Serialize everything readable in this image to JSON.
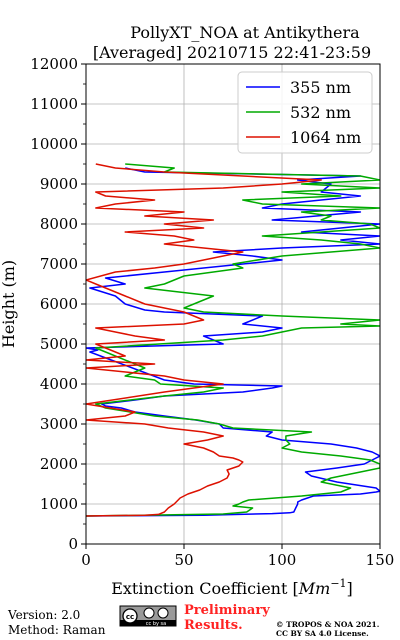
{
  "chart_data": {
    "type": "line",
    "title": "PollyXT_NOA at Antikythera",
    "subtitle": "[Averaged] 20210715 22:41-23:59",
    "xlabel": "Extinction Coefficient [Mm^-1]",
    "xlabel_text": "Extinction Coefficient [",
    "xlabel_unit": "Mm",
    "xlabel_exp": "−1",
    "xlabel_close": "]",
    "ylabel": "Height (m)",
    "xlim": [
      0,
      150
    ],
    "ylim": [
      0,
      12000
    ],
    "xticks": [
      "0",
      "50",
      "100",
      "150"
    ],
    "yticks": [
      "0",
      "1000",
      "2000",
      "3000",
      "4000",
      "5000",
      "6000",
      "7000",
      "8000",
      "9000",
      "10000",
      "11000",
      "12000"
    ],
    "grid": true,
    "legend_position": "top-right",
    "series": [
      {
        "name": "355 nm",
        "color": "#0000ff",
        "points": [
          [
            0,
            700
          ],
          [
            60,
            720
          ],
          [
            95,
            760
          ],
          [
            104,
            780
          ],
          [
            106,
            800
          ],
          [
            107,
            900
          ],
          [
            108,
            1000
          ],
          [
            108,
            1050
          ],
          [
            110,
            1100
          ],
          [
            116,
            1200
          ],
          [
            140,
            1250
          ],
          [
            148,
            1300
          ],
          [
            150,
            1320
          ],
          [
            148,
            1400
          ],
          [
            128,
            1550
          ],
          [
            115,
            1700
          ],
          [
            112,
            1800
          ],
          [
            128,
            1900
          ],
          [
            142,
            2000
          ],
          [
            146,
            2100
          ],
          [
            150,
            2200
          ],
          [
            146,
            2300
          ],
          [
            138,
            2400
          ],
          [
            125,
            2500
          ],
          [
            100,
            2600
          ],
          [
            92,
            2700
          ],
          [
            95,
            2800
          ],
          [
            70,
            2900
          ],
          [
            68,
            3000
          ],
          [
            56,
            3100
          ],
          [
            40,
            3200
          ],
          [
            25,
            3300
          ],
          [
            18,
            3400
          ],
          [
            10,
            3450
          ],
          [
            8,
            3500
          ],
          [
            25,
            3600
          ],
          [
            40,
            3700
          ],
          [
            80,
            3800
          ],
          [
            95,
            3900
          ],
          [
            100,
            3950
          ],
          [
            55,
            4000
          ],
          [
            40,
            4100
          ],
          [
            2,
            4800
          ],
          [
            6,
            4850
          ],
          [
            0,
            4900
          ],
          [
            70,
            5000
          ],
          [
            60,
            5200
          ],
          [
            90,
            5300
          ],
          [
            100,
            5400
          ],
          [
            80,
            5500
          ],
          [
            90,
            5700
          ],
          [
            40,
            5800
          ],
          [
            30,
            5850
          ],
          [
            20,
            6000
          ],
          [
            15,
            6200
          ],
          [
            2,
            6400
          ],
          [
            20,
            6500
          ],
          [
            10,
            6650
          ],
          [
            40,
            6800
          ],
          [
            60,
            6900
          ],
          [
            80,
            7000
          ],
          [
            100,
            7100
          ],
          [
            85,
            7200
          ],
          [
            65,
            7300
          ],
          [
            100,
            7400
          ],
          [
            150,
            7500
          ],
          [
            130,
            7600
          ],
          [
            150,
            7700
          ],
          [
            110,
            7800
          ],
          [
            150,
            8000
          ],
          [
            95,
            8100
          ],
          [
            140,
            8300
          ],
          [
            90,
            8400
          ],
          [
            100,
            8500
          ],
          [
            140,
            8700
          ],
          [
            120,
            8800
          ],
          [
            125,
            9000
          ],
          [
            108,
            9100
          ],
          [
            140,
            9200
          ],
          [
            30,
            9300
          ],
          [
            20,
            9400
          ]
        ]
      },
      {
        "name": "532 nm",
        "color": "#00aa00",
        "points": [
          [
            0,
            700
          ],
          [
            45,
            730
          ],
          [
            70,
            750
          ],
          [
            82,
            800
          ],
          [
            85,
            900
          ],
          [
            75,
            950
          ],
          [
            78,
            1000
          ],
          [
            80,
            1050
          ],
          [
            83,
            1100
          ],
          [
            110,
            1200
          ],
          [
            130,
            1300
          ],
          [
            135,
            1400
          ],
          [
            120,
            1550
          ],
          [
            125,
            1650
          ],
          [
            130,
            1700
          ],
          [
            140,
            1800
          ],
          [
            150,
            1900
          ],
          [
            150,
            2000
          ],
          [
            145,
            2100
          ],
          [
            130,
            2200
          ],
          [
            110,
            2300
          ],
          [
            100,
            2400
          ],
          [
            104,
            2500
          ],
          [
            102,
            2600
          ],
          [
            102,
            2700
          ],
          [
            115,
            2800
          ],
          [
            75,
            2900
          ],
          [
            68,
            3000
          ],
          [
            57,
            3100
          ],
          [
            35,
            3200
          ],
          [
            10,
            3400
          ],
          [
            5,
            3500
          ],
          [
            40,
            3700
          ],
          [
            60,
            3800
          ],
          [
            70,
            3900
          ],
          [
            38,
            4000
          ],
          [
            35,
            4100
          ],
          [
            20,
            4200
          ],
          [
            25,
            4300
          ],
          [
            30,
            4400
          ],
          [
            10,
            4800
          ],
          [
            5,
            4900
          ],
          [
            70,
            5100
          ],
          [
            90,
            5200
          ],
          [
            100,
            5300
          ],
          [
            110,
            5400
          ],
          [
            150,
            5450
          ],
          [
            130,
            5500
          ],
          [
            150,
            5600
          ],
          [
            100,
            5700
          ],
          [
            60,
            5800
          ],
          [
            50,
            5900
          ],
          [
            55,
            6000
          ],
          [
            65,
            6200
          ],
          [
            30,
            6400
          ],
          [
            40,
            6500
          ],
          [
            50,
            6700
          ],
          [
            80,
            6900
          ],
          [
            75,
            7000
          ],
          [
            100,
            7200
          ],
          [
            150,
            7400
          ],
          [
            140,
            7500
          ],
          [
            120,
            7600
          ],
          [
            90,
            7700
          ],
          [
            150,
            7900
          ],
          [
            145,
            8000
          ],
          [
            120,
            8100
          ],
          [
            125,
            8200
          ],
          [
            110,
            8300
          ],
          [
            150,
            8400
          ],
          [
            90,
            8500
          ],
          [
            80,
            8600
          ],
          [
            130,
            8700
          ],
          [
            100,
            8800
          ],
          [
            150,
            8900
          ],
          [
            110,
            9000
          ],
          [
            150,
            9100
          ],
          [
            140,
            9200
          ],
          [
            40,
            9300
          ],
          [
            45,
            9400
          ],
          [
            20,
            9500
          ]
        ]
      },
      {
        "name": "1064 nm",
        "color": "#dd1100",
        "points": [
          [
            0,
            700
          ],
          [
            30,
            720
          ],
          [
            37,
            740
          ],
          [
            40,
            800
          ],
          [
            42,
            900
          ],
          [
            45,
            1000
          ],
          [
            46,
            1050
          ],
          [
            48,
            1150
          ],
          [
            52,
            1250
          ],
          [
            58,
            1350
          ],
          [
            62,
            1450
          ],
          [
            68,
            1550
          ],
          [
            72,
            1650
          ],
          [
            73,
            1750
          ],
          [
            72,
            1850
          ],
          [
            78,
            1950
          ],
          [
            80,
            2050
          ],
          [
            78,
            2100
          ],
          [
            75,
            2150
          ],
          [
            68,
            2200
          ],
          [
            65,
            2300
          ],
          [
            60,
            2400
          ],
          [
            50,
            2500
          ],
          [
            62,
            2600
          ],
          [
            70,
            2700
          ],
          [
            60,
            2800
          ],
          [
            42,
            2900
          ],
          [
            30,
            3000
          ],
          [
            0,
            3100
          ],
          [
            20,
            3200
          ],
          [
            25,
            3300
          ],
          [
            0,
            3500
          ],
          [
            40,
            3800
          ],
          [
            70,
            4000
          ],
          [
            50,
            4100
          ],
          [
            40,
            4200
          ],
          [
            0,
            4400
          ],
          [
            35,
            4500
          ],
          [
            0,
            4600
          ],
          [
            20,
            4700
          ],
          [
            5,
            5000
          ],
          [
            40,
            5100
          ],
          [
            25,
            5200
          ],
          [
            15,
            5300
          ],
          [
            5,
            5400
          ],
          [
            50,
            5500
          ],
          [
            60,
            5600
          ],
          [
            55,
            5700
          ],
          [
            50,
            5800
          ],
          [
            40,
            5900
          ],
          [
            30,
            6000
          ],
          [
            20,
            6200
          ],
          [
            5,
            6500
          ],
          [
            0,
            6600
          ],
          [
            15,
            6800
          ],
          [
            35,
            6900
          ],
          [
            50,
            7000
          ],
          [
            60,
            7100
          ],
          [
            70,
            7200
          ],
          [
            80,
            7300
          ],
          [
            60,
            7400
          ],
          [
            40,
            7500
          ],
          [
            55,
            7600
          ],
          [
            45,
            7700
          ],
          [
            20,
            7800
          ],
          [
            60,
            7900
          ],
          [
            40,
            8000
          ],
          [
            65,
            8100
          ],
          [
            30,
            8200
          ],
          [
            50,
            8300
          ],
          [
            5,
            8400
          ],
          [
            15,
            8500
          ],
          [
            35,
            8600
          ],
          [
            10,
            8700
          ],
          [
            5,
            8800
          ],
          [
            70,
            8900
          ],
          [
            100,
            9000
          ],
          [
            120,
            9100
          ],
          [
            80,
            9200
          ],
          [
            40,
            9300
          ],
          [
            15,
            9400
          ],
          [
            5,
            9500
          ]
        ]
      }
    ]
  },
  "footer": {
    "version": "Version: 2.0",
    "method": "Method: Raman",
    "preliminary_line1": "Preliminary",
    "preliminary_line2": "Results.",
    "copyright_line1": "© TROPOS & NOA 2021.",
    "copyright_line2": "CC BY SA 4.0 License.",
    "license_badge": "cc by sa",
    "preliminary_color": "#ff2222"
  }
}
